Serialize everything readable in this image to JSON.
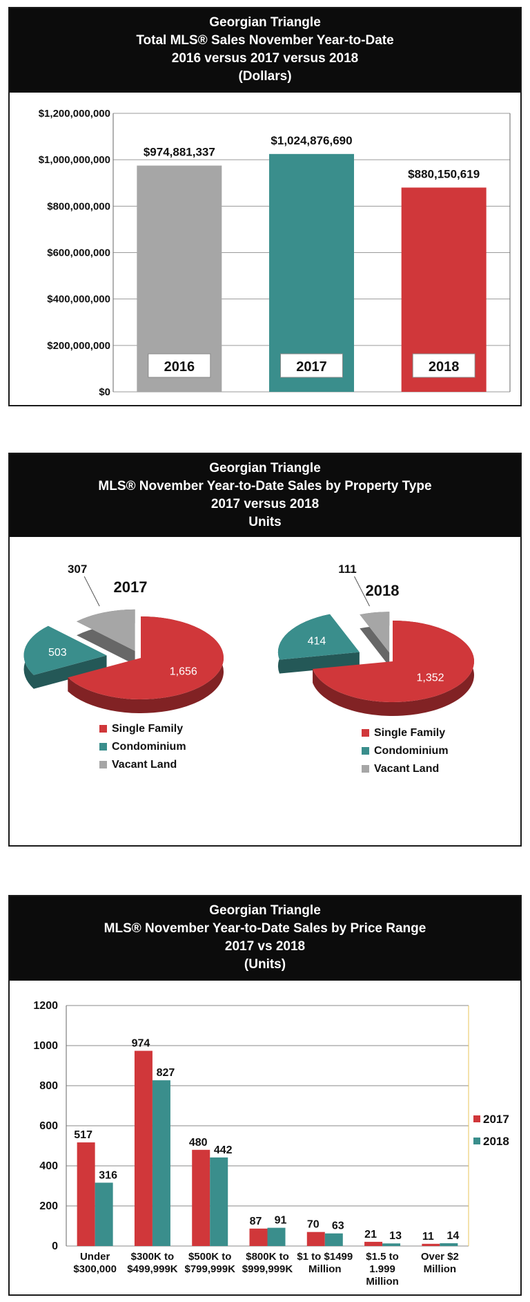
{
  "chart_data": [
    {
      "type": "bar",
      "title_lines": [
        "Georgian Triangle",
        "Total MLS® Sales November Year-to-Date",
        "2016 versus 2017 versus 2018",
        "(Dollars)"
      ],
      "categories": [
        "2016",
        "2017",
        "2018"
      ],
      "values": [
        974881337,
        1024876690,
        880150619
      ],
      "value_labels": [
        "$974,881,337",
        "$1,024,876,690",
        "$880,150,619"
      ],
      "colors": [
        "#a6a6a6",
        "#3a8e8c",
        "#d0373a"
      ],
      "ylim": [
        0,
        1200000000
      ],
      "yticks": [
        0,
        200000000,
        400000000,
        600000000,
        800000000,
        1000000000,
        1200000000
      ],
      "ytick_labels": [
        "$0",
        "$200,000,000",
        "$400,000,000",
        "$600,000,000",
        "$800,000,000",
        "$1,000,000,000",
        "$1,200,000,000"
      ],
      "grid": true
    },
    {
      "type": "pie",
      "title_lines": [
        "Georgian Triangle",
        "MLS® November Year-to-Date Sales by Property Type",
        "2017 versus 2018",
        "Units"
      ],
      "legend_labels": [
        "Single Family",
        "Condominium",
        "Vacant Land"
      ],
      "colors": [
        "#d0373a",
        "#3a8e8c",
        "#a6a6a6"
      ],
      "pies": [
        {
          "name": "2017",
          "values": [
            1656,
            503,
            307
          ],
          "labels": [
            "1,656",
            "503",
            "307"
          ]
        },
        {
          "name": "2018",
          "values": [
            1352,
            414,
            111
          ],
          "labels": [
            "1,352",
            "414",
            "111"
          ]
        }
      ]
    },
    {
      "type": "bar",
      "title_lines": [
        "Georgian Triangle",
        "MLS®  November Year-to-Date Sales by Price Range",
        "2017 vs 2018",
        "(Units)"
      ],
      "categories": [
        [
          "Under",
          "$300,000"
        ],
        [
          "$300K to",
          "$499,999K"
        ],
        [
          "$500K to",
          "$799,999K"
        ],
        [
          "$800K to",
          "$999,999K"
        ],
        [
          "$1 to $1499",
          "Million"
        ],
        [
          "$1.5 to",
          "1.999",
          "Million"
        ],
        [
          "Over $2",
          "Million"
        ]
      ],
      "series": [
        {
          "name": "2017",
          "color": "#d0373a",
          "values": [
            517,
            974,
            480,
            87,
            70,
            21,
            11
          ]
        },
        {
          "name": "2018",
          "color": "#3a8e8c",
          "values": [
            316,
            827,
            442,
            91,
            63,
            13,
            14
          ]
        }
      ],
      "ylim": [
        0,
        1200
      ],
      "yticks": [
        0,
        200,
        400,
        600,
        800,
        1000,
        1200
      ],
      "legend_position": "right",
      "grid": true
    }
  ]
}
